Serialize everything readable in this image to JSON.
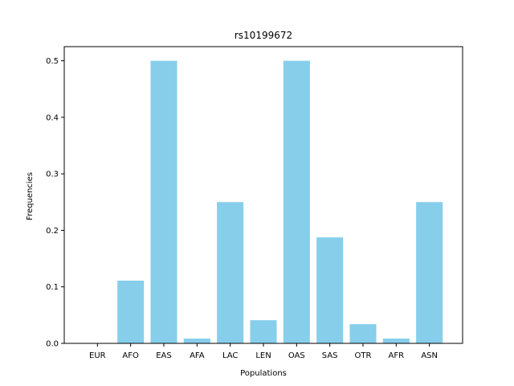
{
  "chart_data": {
    "type": "bar",
    "title": "rs10199672",
    "xlabel": "Populations",
    "ylabel": "Frequencies",
    "categories": [
      "EUR",
      "AFO",
      "EAS",
      "AFA",
      "LAC",
      "LEN",
      "OAS",
      "SAS",
      "OTR",
      "AFR",
      "ASN"
    ],
    "values": [
      0.0,
      0.111,
      0.5,
      0.0085,
      0.25,
      0.041,
      0.5,
      0.1875,
      0.034,
      0.0085,
      0.25
    ],
    "ylim": [
      0,
      0.525
    ],
    "yticks": [
      0.0,
      0.1,
      0.2,
      0.3,
      0.4,
      0.5
    ],
    "ytick_labels": [
      "0.0",
      "0.1",
      "0.2",
      "0.3",
      "0.4",
      "0.5"
    ],
    "bar_color": "#87ceeb",
    "grid": false,
    "legend": "none"
  }
}
